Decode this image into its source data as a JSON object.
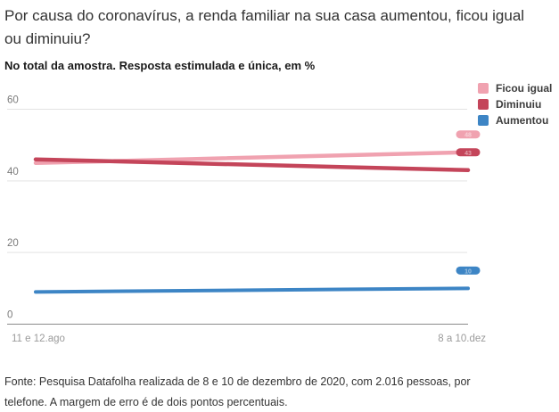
{
  "title": "Por causa do coronavírus, a renda familiar na sua casa aumentou, ficou igual ou diminuiu?",
  "subtitle": "No total da amostra. Resposta estimulada e única, em %",
  "source": "Fonte: Pesquisa Datafolha realizada de 8 e 10 de dezembro de 2020, com 2.016 pessoas, por telefone. A margem de erro é de dois pontos percentuais.",
  "chart_data": {
    "type": "line",
    "categories": [
      "11 e 12.ago",
      "8 a 10.dez"
    ],
    "series": [
      {
        "name": "Ficou igual",
        "values": [
          45,
          48
        ],
        "color": "#f0a2b0"
      },
      {
        "name": "Diminuiu",
        "values": [
          46,
          43
        ],
        "color": "#c4455a"
      },
      {
        "name": "Aumentou",
        "values": [
          9,
          10
        ],
        "color": "#3d85c5"
      }
    ],
    "yticks": [
      0,
      20,
      40,
      60
    ],
    "ylim": [
      0,
      60
    ],
    "grid": true,
    "legend_position": "top-right",
    "end_labels": [
      48,
      43,
      10
    ]
  },
  "colors": {
    "gridline": "#e3e3e3",
    "axis_line": "#8a8a8a",
    "ytick_text": "#7b7b7b",
    "xtick_text": "#9b9b9b",
    "title_text": "#333333"
  }
}
